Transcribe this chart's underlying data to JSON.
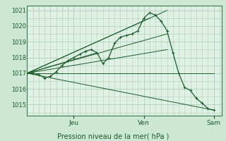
{
  "title": "",
  "xlabel": "Pression niveau de la mer( hPa )",
  "ylim": [
    1014.3,
    1021.3
  ],
  "xlim": [
    0,
    100
  ],
  "yticks": [
    1015,
    1016,
    1017,
    1018,
    1019,
    1020,
    1021
  ],
  "xtick_positions": [
    24,
    60,
    96
  ],
  "xtick_labels": [
    "Jeu",
    "Ven",
    "Sam"
  ],
  "bg_color": "#cce8d4",
  "plot_bg_color": "#dff0e4",
  "grid_color": "#b0cdb8",
  "line_color": "#1a5c28",
  "main_line": {
    "x": [
      0,
      3,
      6,
      9,
      12,
      15,
      18,
      21,
      24,
      27,
      30,
      33,
      36,
      39,
      42,
      45,
      48,
      51,
      54,
      57,
      60,
      63,
      66,
      69,
      72,
      75,
      78,
      81,
      84,
      87,
      90,
      93,
      96
    ],
    "y": [
      1017.0,
      1017.0,
      1016.9,
      1016.7,
      1016.8,
      1017.1,
      1017.5,
      1017.8,
      1018.0,
      1018.2,
      1018.4,
      1018.5,
      1018.3,
      1017.6,
      1018.0,
      1018.9,
      1019.3,
      1019.4,
      1019.5,
      1019.7,
      1020.5,
      1020.85,
      1020.7,
      1020.3,
      1019.7,
      1018.3,
      1017.0,
      1016.1,
      1015.9,
      1015.4,
      1015.1,
      1014.75,
      1014.65
    ]
  },
  "ensemble_lines": [
    {
      "x": [
        0,
        96
      ],
      "y": [
        1017.0,
        1017.0
      ]
    },
    {
      "x": [
        0,
        96
      ],
      "y": [
        1017.0,
        1014.65
      ]
    },
    {
      "x": [
        0,
        72
      ],
      "y": [
        1017.0,
        1021.0
      ]
    },
    {
      "x": [
        0,
        63
      ],
      "y": [
        1017.0,
        1020.5
      ]
    },
    {
      "x": [
        0,
        72
      ],
      "y": [
        1017.0,
        1019.5
      ]
    },
    {
      "x": [
        0,
        72
      ],
      "y": [
        1017.0,
        1018.5
      ]
    },
    {
      "x": [
        0,
        36
      ],
      "y": [
        1017.0,
        1018.3
      ]
    }
  ]
}
